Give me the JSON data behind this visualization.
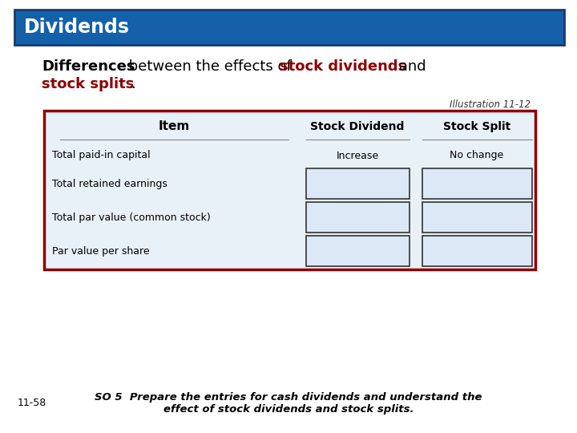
{
  "title": "Dividends",
  "title_bg_color": "#1560a8",
  "title_text_color": "#ffffff",
  "title_fontsize": 17,
  "subtitle_color_normal": "#000000",
  "subtitle_color_bold": "#8B0000",
  "subtitle_fontsize": 13,
  "illustration_label": "Illustration 11-12",
  "illustration_fontsize": 8.5,
  "table_border_color": "#8B0000",
  "table_bg_color": "#e8f0f8",
  "table_header_row": [
    "Item",
    "Stock Dividend",
    "Stock Split"
  ],
  "table_rows": [
    [
      "Total paid-in capital",
      "Increase",
      "No change"
    ],
    [
      "Total retained earnings",
      "",
      ""
    ],
    [
      "Total par value (common stock)",
      "",
      ""
    ],
    [
      "Par value per share",
      "",
      ""
    ]
  ],
  "cell_bg_color": "#dce8f5",
  "footer_left": "11-58",
  "footer_text": "SO 5  Prepare the entries for cash dividends and understand the\neffect of stock dividends and stock splits.",
  "footer_fontsize": 9.5,
  "bg_color": "#ffffff"
}
